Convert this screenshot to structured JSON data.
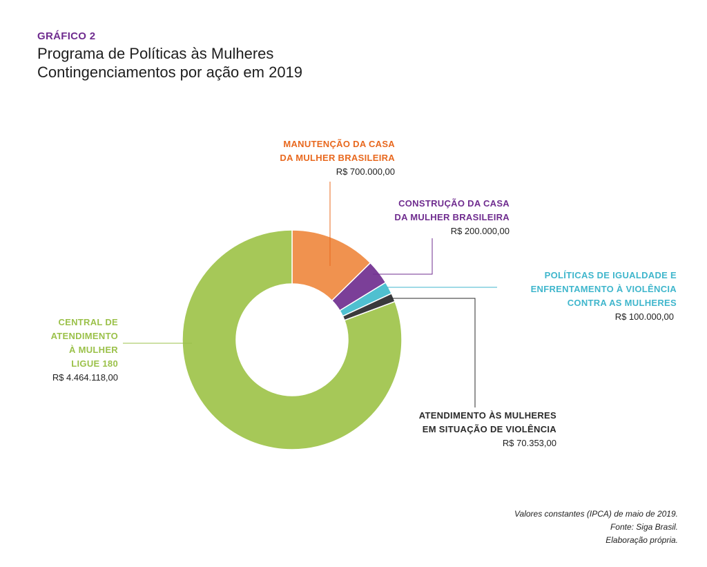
{
  "header": {
    "kicker": "GRÁFICO 2",
    "title_line1": "Programa de Políticas às Mulheres",
    "title_line2": "Contingenciamentos por ação em 2019"
  },
  "labels": [
    {
      "name_line1": "MANUTENÇÃO DA CASA",
      "name_line2": "DA MULHER BRASILEIRA",
      "value": "R$ 700.000,00"
    },
    {
      "name_line1": "CONSTRUÇÃO DA CASA",
      "name_line2": "DA MULHER BRASILEIRA",
      "value": "R$ 200.000,00"
    },
    {
      "name_line1": "POLÍTICAS DE IGUALDADE E",
      "name_line2": "ENFRENTAMENTO À VIOLÊNCIA",
      "name_line3": "CONTRA AS MULHERES",
      "value": "R$ 100.000,00"
    },
    {
      "name_line1": "ATENDIMENTO ÀS MULHERES",
      "name_line2": "EM SITUAÇÃO DE VIOLÊNCIA",
      "value": "R$ 70.353,00"
    },
    {
      "name_line1": "CENTRAL DE",
      "name_line2": "ATENDIMENTO",
      "name_line3": "À MULHER",
      "name_line4": "LIGUE 180",
      "value": "R$ 4.464.118,00"
    }
  ],
  "source": {
    "line1": "Valores constantes (IPCA) de maio de 2019.",
    "line2": "Fonte: Siga Brasil.",
    "line3": "Elaboração própria."
  },
  "chart_data": {
    "type": "pie",
    "donut": true,
    "title": "Programa de Políticas às Mulheres Contingenciamentos por ação em 2019",
    "categories": [
      "MANUTENÇÃO DA CASA DA MULHER BRASILEIRA",
      "CONSTRUÇÃO DA CASA DA MULHER BRASILEIRA",
      "POLÍTICAS DE IGUALDADE E ENFRENTAMENTO À VIOLÊNCIA CONTRA AS MULHERES",
      "ATENDIMENTO ÀS MULHERES EM SITUAÇÃO DE VIOLÊNCIA",
      "CENTRAL DE ATENDIMENTO À MULHER LIGUE 180"
    ],
    "values": [
      700000,
      200000,
      100000,
      70353,
      4464118
    ],
    "colors": [
      "#f0924f",
      "#7b3f98",
      "#4fc0d0",
      "#3a3a3c",
      "#a6c858"
    ],
    "label_colors": [
      "#e8681e",
      "#6f2c8f",
      "#3fb6cc",
      "#2a2a2a",
      "#9bc14a"
    ]
  }
}
